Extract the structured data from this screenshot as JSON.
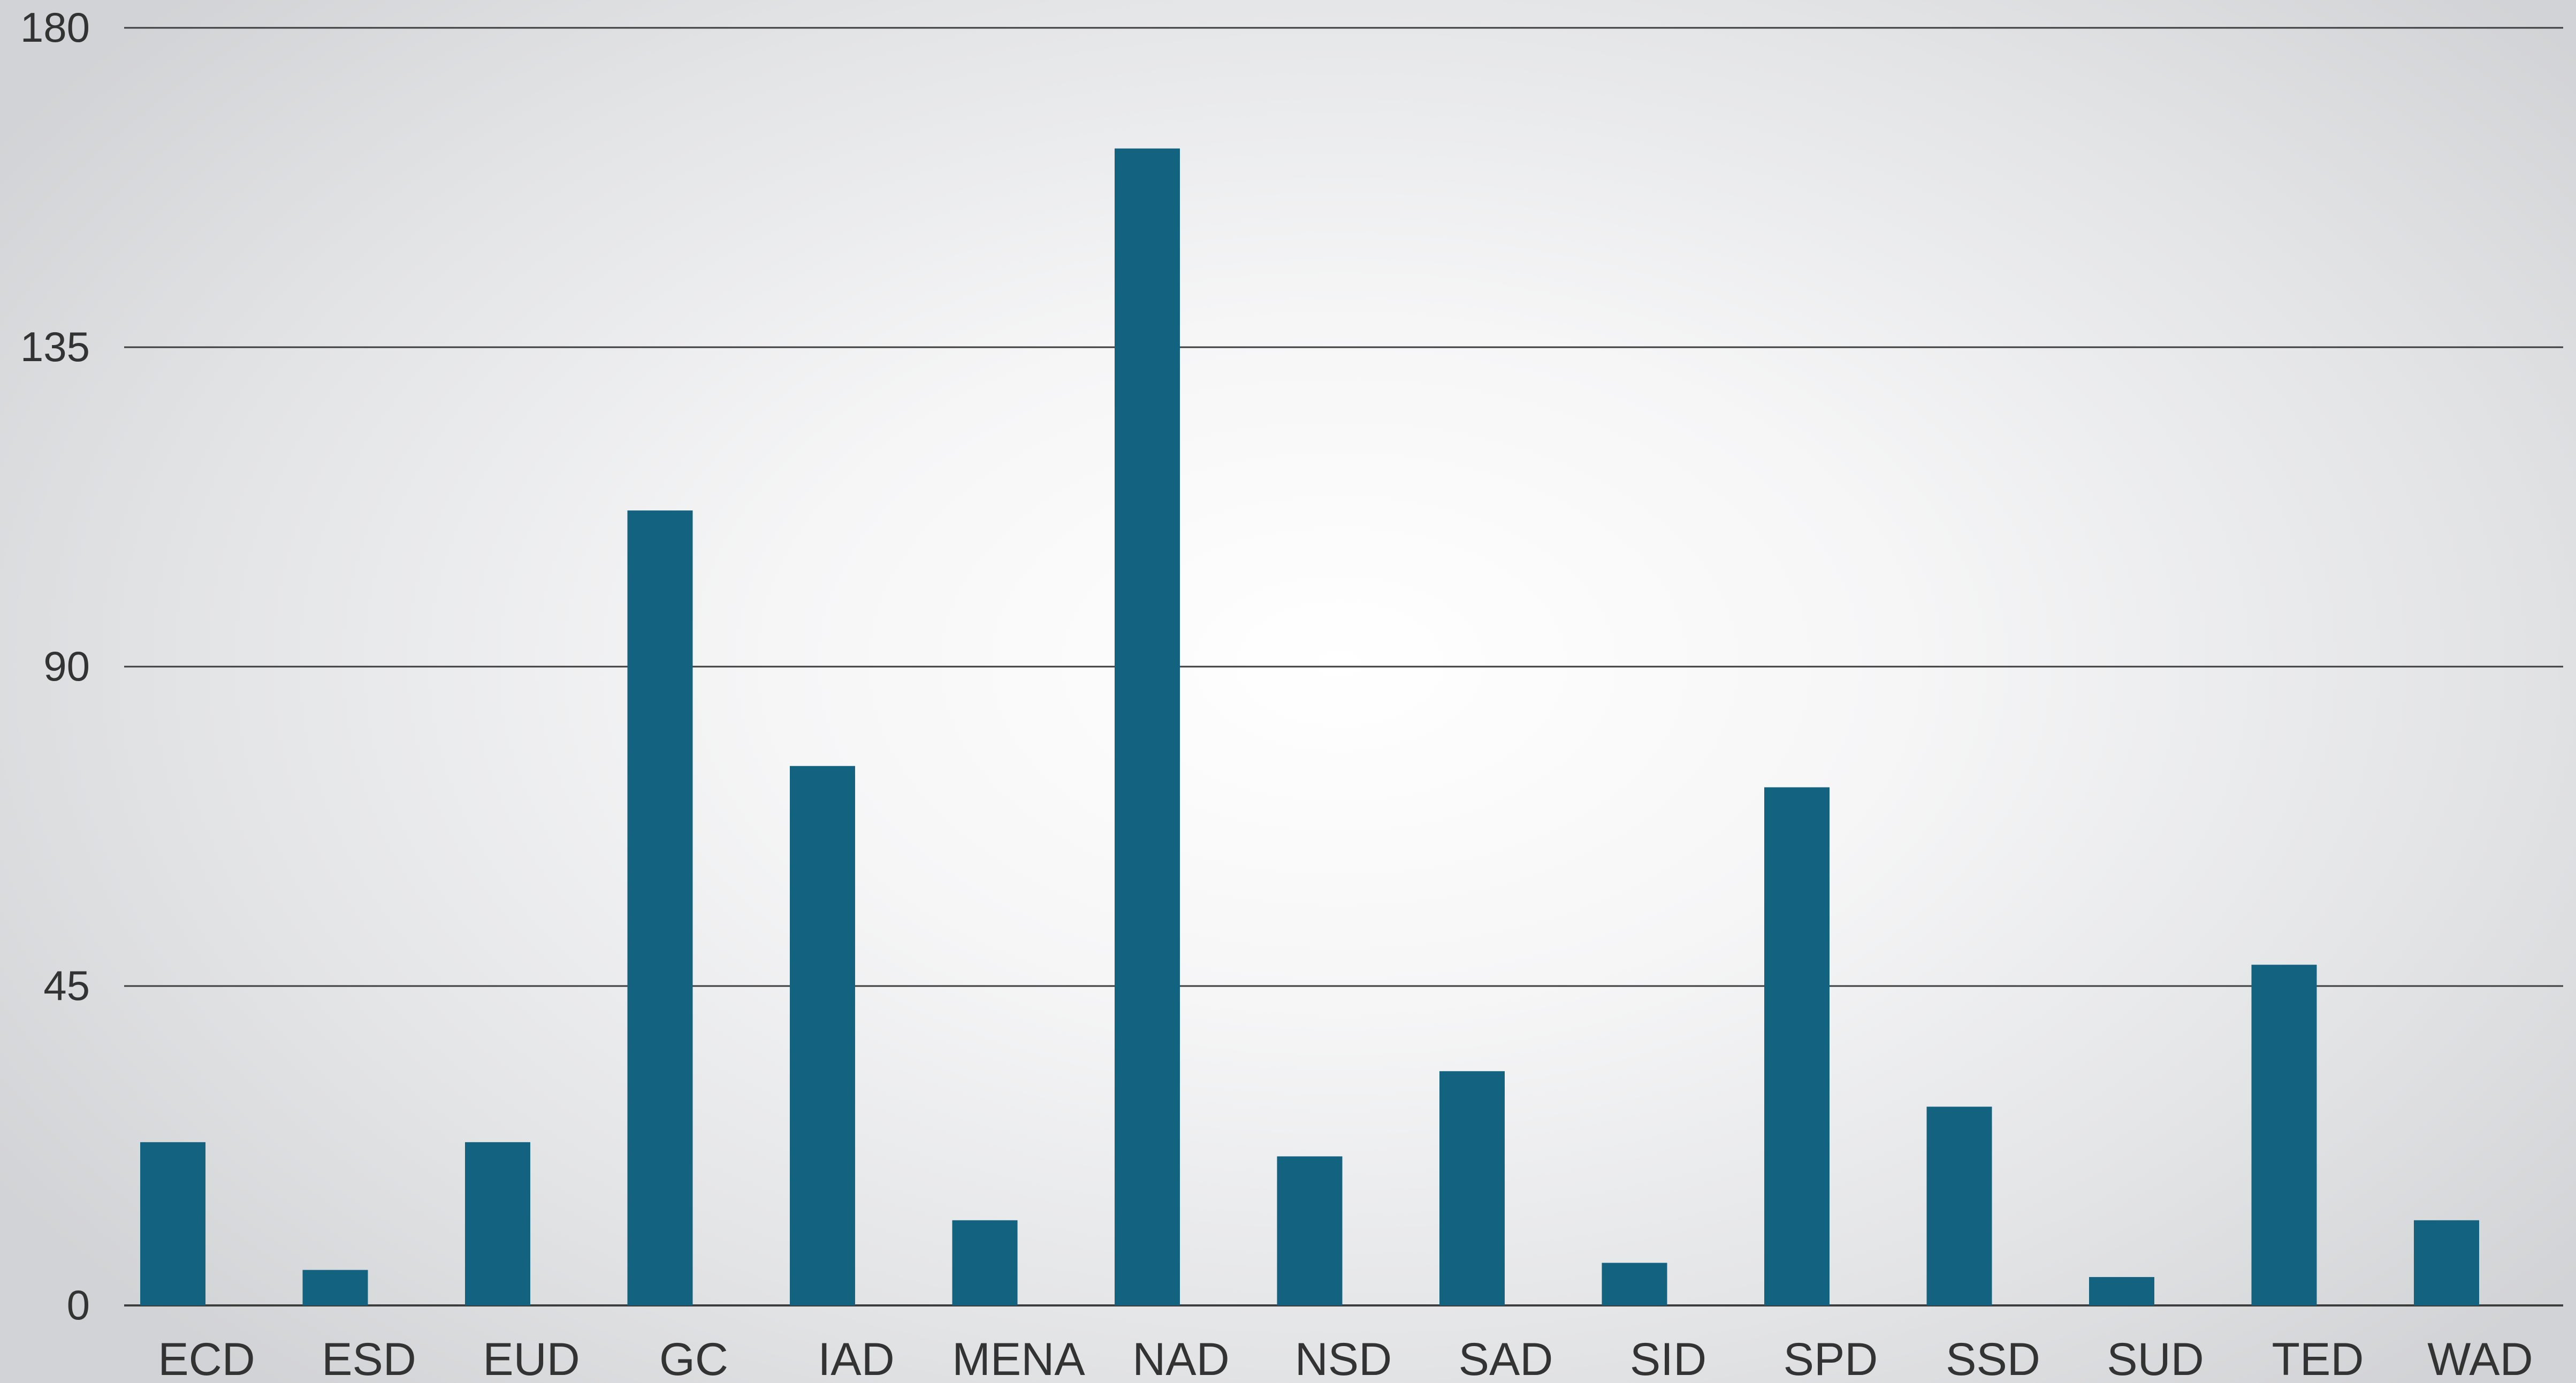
{
  "chart_data": {
    "type": "bar",
    "categories": [
      "ECD",
      "ESD",
      "EUD",
      "GC",
      "IAD",
      "MENA",
      "NAD",
      "NSD",
      "SAD",
      "SID",
      "SPD",
      "SSD",
      "SUD",
      "TED",
      "WAD"
    ],
    "values": [
      23,
      5,
      23,
      112,
      76,
      12,
      163,
      21,
      33,
      6,
      73,
      28,
      4,
      48,
      12
    ],
    "title": "",
    "xlabel": "",
    "ylabel": "",
    "ylim": [
      0,
      180
    ],
    "yticks": [
      0,
      45,
      90,
      135,
      180
    ],
    "grid": true,
    "legend": "none",
    "colors": {
      "bar": "#136280",
      "gridline": "#3d3d3d",
      "text": "#333333"
    }
  }
}
